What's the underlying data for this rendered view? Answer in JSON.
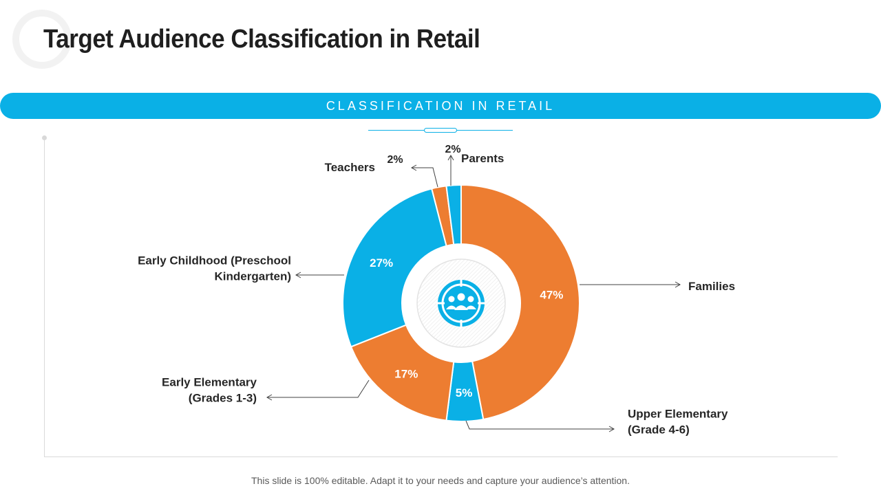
{
  "title": "Target Audience Classification in Retail",
  "banner": "CLASSIFICATION IN RETAIL",
  "footer": "This slide is 100% editable. Adapt it to your needs and capture your audience’s attention.",
  "colors": {
    "orange": "#ed7d31",
    "blue": "#0ab0e6",
    "center_icon": "#0ab0e6"
  },
  "center_icon": "audience-target-icon",
  "chart_data": {
    "type": "pie",
    "donut": true,
    "order": "clockwise-from-top",
    "slices": [
      {
        "label": "Families",
        "value": 47,
        "display": "47%",
        "color": "#ed7d31"
      },
      {
        "label": "Upper Elementary (Grade 4-6)",
        "lines": [
          "Upper Elementary",
          "(Grade 4-6)"
        ],
        "value": 5,
        "display": "5%",
        "color": "#0ab0e6"
      },
      {
        "label": "Early Elementary (Grades 1-3)",
        "lines": [
          "Early Elementary",
          "(Grades 1-3)"
        ],
        "value": 17,
        "display": "17%",
        "color": "#ed7d31"
      },
      {
        "label": "Early Childhood (Preschool Kindergarten)",
        "lines": [
          "Early Childhood (Preschool",
          "Kindergarten)"
        ],
        "value": 27,
        "display": "27%",
        "color": "#0ab0e6"
      },
      {
        "label": "Teachers",
        "lines": [
          "Teachers"
        ],
        "value": 2,
        "display": "2%",
        "color": "#ed7d31"
      },
      {
        "label": "Parents",
        "lines": [
          "Parents"
        ],
        "value": 2,
        "display": "2%",
        "color": "#0ab0e6"
      }
    ]
  }
}
